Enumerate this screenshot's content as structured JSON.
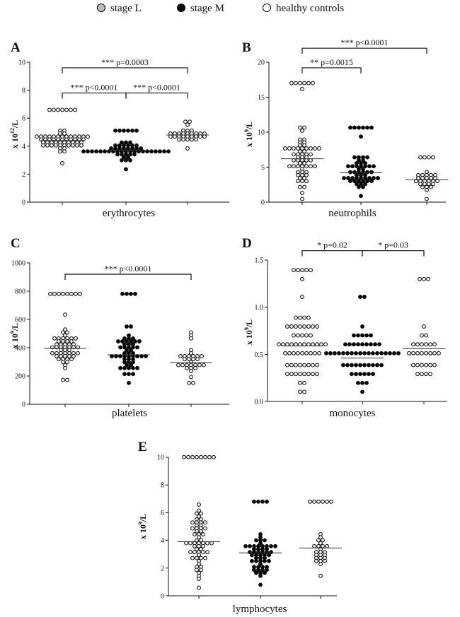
{
  "legend": {
    "items": [
      {
        "label": "stage L",
        "fill": "#bdbdbd"
      },
      {
        "label": "stage M",
        "fill": "#000000"
      },
      {
        "label": "healthy controls",
        "fill": "#ffffff"
      }
    ]
  },
  "colors": {
    "ink": "#111111",
    "stageL_marker": "#ffffff",
    "stageM_marker": "#000000",
    "control_marker": "#ffffff"
  },
  "chart_data": [
    {
      "type": "scatter",
      "panel": "A",
      "xlabel": "erythrocytes",
      "ylabel_base": "x 10",
      "ylabel_exp": "12",
      "ylabel_unit": "/L",
      "ylim": [
        0,
        10
      ],
      "yticks": [
        "0",
        "2",
        "4",
        "6",
        "8",
        "10"
      ],
      "tick_values": [
        0,
        2,
        4,
        6,
        8,
        10
      ],
      "groups": [
        {
          "name": "stage L",
          "n": 60,
          "median": 4.4,
          "min": 2.8,
          "max": 6.5,
          "spread": 0.5
        },
        {
          "name": "stage M",
          "n": 55,
          "median": 3.7,
          "min": 2.3,
          "max": 5.2,
          "spread": 0.45
        },
        {
          "name": "healthy controls",
          "n": 30,
          "median": 4.8,
          "min": 3.8,
          "max": 5.7,
          "spread": 0.35
        }
      ],
      "comparisons": [
        {
          "from": 0,
          "to": 2,
          "label": "*** p=0.0003",
          "level": 9.6
        },
        {
          "from": 0,
          "to": 1,
          "label": "*** p<0.0001",
          "level": 7.8
        },
        {
          "from": 1,
          "to": 2,
          "label": "*** p<0.0001",
          "level": 7.8
        }
      ]
    },
    {
      "type": "scatter",
      "panel": "B",
      "xlabel": "neutrophils",
      "ylabel_base": "x 10",
      "ylabel_exp": "9",
      "ylabel_unit": "/L",
      "ylim": [
        0,
        20
      ],
      "yticks": [
        "0",
        "5",
        "10",
        "15",
        "20"
      ],
      "tick_values": [
        0,
        5,
        10,
        15,
        20
      ],
      "groups": [
        {
          "name": "stage L",
          "n": 65,
          "median": 6.2,
          "min": 0.6,
          "max": 17,
          "spread": 3.2
        },
        {
          "name": "stage M",
          "n": 55,
          "median": 4.2,
          "min": 1.0,
          "max": 10.5,
          "spread": 1.9
        },
        {
          "name": "healthy controls",
          "n": 30,
          "median": 3.2,
          "min": 0.4,
          "max": 6.6,
          "spread": 1.1
        }
      ],
      "comparisons": [
        {
          "from": 0,
          "to": 2,
          "label": "*** p<0.0001",
          "level": 22.0
        },
        {
          "from": 0,
          "to": 1,
          "label": "** p=0.0015",
          "level": 19.2
        }
      ]
    },
    {
      "type": "scatter",
      "panel": "C",
      "xlabel": "platelets",
      "ylabel_base": "x 10",
      "ylabel_exp": "9",
      "ylabel_unit": "/L",
      "ylim": [
        0,
        1000
      ],
      "yticks": [
        "0",
        "200",
        "400",
        "600",
        "800",
        "1000"
      ],
      "tick_values": [
        0,
        200,
        400,
        600,
        800,
        1000
      ],
      "groups": [
        {
          "name": "stage L",
          "n": 60,
          "median": 395,
          "min": 170,
          "max": 780,
          "spread": 110
        },
        {
          "name": "stage M",
          "n": 55,
          "median": 350,
          "min": 160,
          "max": 780,
          "spread": 120
        },
        {
          "name": "healthy controls",
          "n": 30,
          "median": 295,
          "min": 160,
          "max": 510,
          "spread": 80
        }
      ],
      "comparisons": [
        {
          "from": 0,
          "to": 2,
          "label": "*** p<0.0001",
          "level": 920
        }
      ]
    },
    {
      "type": "scatter",
      "panel": "D",
      "xlabel": "monocytes",
      "ylabel_base": "x 10",
      "ylabel_exp": "9",
      "ylabel_unit": "/L",
      "ylim": [
        0,
        1.5
      ],
      "yticks": [
        "0.0",
        "0.5",
        "1.0",
        "1.5"
      ],
      "tick_values": [
        0,
        0.5,
        1.0,
        1.5
      ],
      "discrete_step": 0.1,
      "groups": [
        {
          "name": "stage L",
          "n": 65,
          "median": 0.59,
          "min": 0.1,
          "max": 1.4,
          "spread": 0.28
        },
        {
          "name": "stage M",
          "n": 55,
          "median": 0.46,
          "min": 0.1,
          "max": 1.1,
          "spread": 0.22
        },
        {
          "name": "healthy controls",
          "n": 30,
          "median": 0.56,
          "min": 0.3,
          "max": 1.3,
          "spread": 0.22
        }
      ],
      "comparisons": [
        {
          "from": 0,
          "to": 1,
          "label": "* p=0.02",
          "level": 1.6
        },
        {
          "from": 1,
          "to": 2,
          "label": "* p=0.03",
          "level": 1.6
        }
      ]
    },
    {
      "type": "scatter",
      "panel": "E",
      "xlabel": "lymphocytes",
      "ylabel_base": "x 10",
      "ylabel_exp": "9",
      "ylabel_unit": "/L",
      "ylim": [
        0,
        10
      ],
      "yticks": [
        "0",
        "2",
        "4",
        "6",
        "8",
        "10"
      ],
      "tick_values": [
        0,
        2,
        4,
        6,
        8,
        10
      ],
      "groups": [
        {
          "name": "stage L",
          "n": 65,
          "median": 3.9,
          "min": 0.6,
          "max": 10,
          "spread": 2.0
        },
        {
          "name": "stage M",
          "n": 55,
          "median": 3.1,
          "min": 0.8,
          "max": 6.8,
          "spread": 1.2
        },
        {
          "name": "healthy controls",
          "n": 30,
          "median": 3.45,
          "min": 1.4,
          "max": 6.8,
          "spread": 1.1
        }
      ],
      "comparisons": []
    }
  ]
}
